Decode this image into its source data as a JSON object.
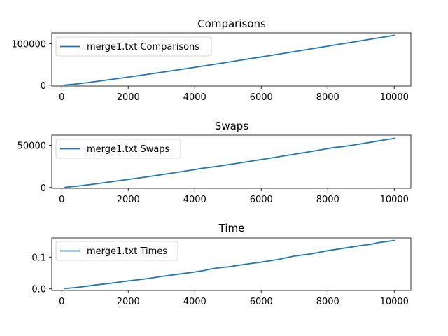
{
  "chart_data": [
    {
      "type": "line",
      "title": "Comparisons",
      "xlabel": "",
      "ylabel": "",
      "xlim": [
        -300,
        10500
      ],
      "ylim": [
        -2000,
        126000
      ],
      "xticks": [
        0,
        2000,
        4000,
        6000,
        8000,
        10000
      ],
      "xtick_labels": [
        "0",
        "2000",
        "4000",
        "6000",
        "8000",
        "10000"
      ],
      "yticks": [
        0,
        100000
      ],
      "ytick_labels": [
        "0",
        "100000"
      ],
      "legend_position": "upper-left",
      "grid": false,
      "series": [
        {
          "name": "merge1.txt Comparisons",
          "color": "#1f77b4",
          "x": [
            100,
            500,
            1000,
            1500,
            2000,
            2500,
            3000,
            3500,
            4000,
            4500,
            5000,
            5500,
            6000,
            6500,
            7000,
            7500,
            8000,
            8500,
            9000,
            9500,
            10000
          ],
          "y": [
            500,
            3500,
            8500,
            14000,
            19500,
            25200,
            31000,
            37000,
            43000,
            49200,
            55500,
            61800,
            68000,
            74500,
            81000,
            87500,
            94000,
            100500,
            107000,
            113500,
            120000
          ]
        }
      ]
    },
    {
      "type": "line",
      "title": "Swaps",
      "xlabel": "",
      "ylabel": "",
      "xlim": [
        -300,
        10500
      ],
      "ylim": [
        -1000,
        62000
      ],
      "xticks": [
        0,
        2000,
        4000,
        6000,
        8000,
        10000
      ],
      "xtick_labels": [
        "0",
        "2000",
        "4000",
        "6000",
        "8000",
        "10000"
      ],
      "yticks": [
        0,
        50000
      ],
      "ytick_labels": [
        "0",
        "50000"
      ],
      "legend_position": "upper-left",
      "grid": false,
      "series": [
        {
          "name": "merge1.txt Swaps",
          "color": "#1f77b4",
          "x": [
            100,
            500,
            1000,
            1500,
            2000,
            2500,
            3000,
            3500,
            4000,
            4200,
            4500,
            5000,
            5500,
            6000,
            6500,
            7000,
            7500,
            8000,
            8200,
            8500,
            9000,
            9500,
            10000
          ],
          "y": [
            250,
            1800,
            4200,
            6900,
            9600,
            12300,
            15200,
            18200,
            21200,
            22600,
            24100,
            27000,
            30000,
            33100,
            36200,
            39400,
            42600,
            46000,
            47400,
            48600,
            51700,
            55000,
            58200
          ]
        }
      ]
    },
    {
      "type": "line",
      "title": "Time",
      "xlabel": "",
      "ylabel": "",
      "xlim": [
        -300,
        10500
      ],
      "ylim": [
        -0.005,
        0.16
      ],
      "xticks": [
        0,
        2000,
        4000,
        6000,
        8000,
        10000
      ],
      "xtick_labels": [
        "0",
        "2000",
        "4000",
        "6000",
        "8000",
        "10000"
      ],
      "yticks": [
        0.0,
        0.1
      ],
      "ytick_labels": [
        "0.0",
        "0.1"
      ],
      "legend_position": "upper-left",
      "grid": false,
      "series": [
        {
          "name": "merge1.txt Times",
          "color": "#1f77b4",
          "x": [
            100,
            500,
            1000,
            1500,
            2000,
            2500,
            3000,
            3500,
            4000,
            4300,
            4500,
            4800,
            5000,
            5500,
            6000,
            6500,
            6800,
            7000,
            7500,
            8000,
            8500,
            9000,
            9300,
            9500,
            10000
          ],
          "y": [
            0.001,
            0.005,
            0.012,
            0.018,
            0.025,
            0.031,
            0.039,
            0.046,
            0.053,
            0.058,
            0.063,
            0.067,
            0.069,
            0.077,
            0.084,
            0.092,
            0.099,
            0.103,
            0.11,
            0.12,
            0.128,
            0.136,
            0.14,
            0.145,
            0.152
          ]
        }
      ]
    }
  ]
}
